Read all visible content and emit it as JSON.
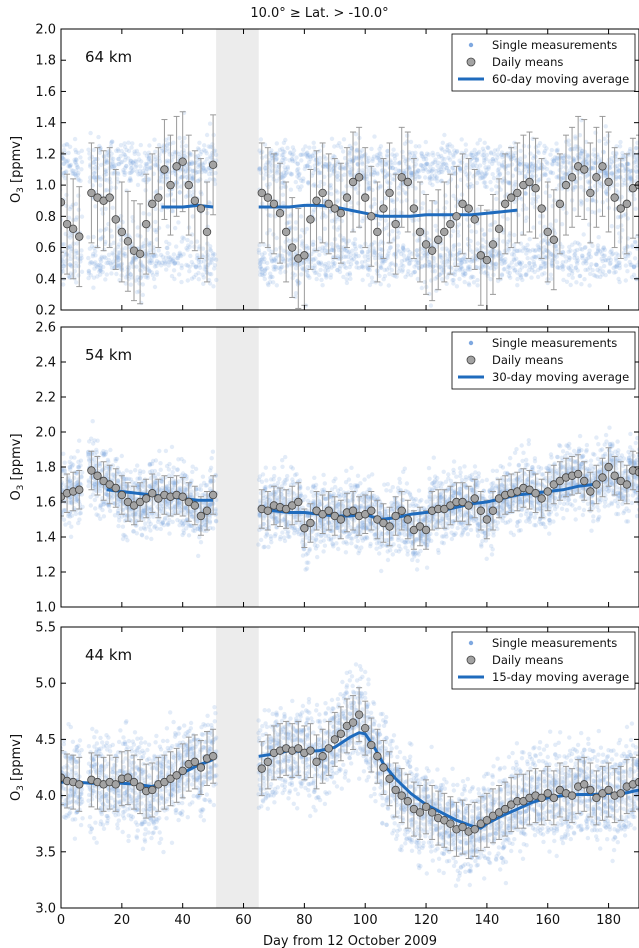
{
  "figure": {
    "title": "10.0° ≥ Lat. > -10.0°",
    "xlabel": "Day from 12 October 2009"
  },
  "colors": {
    "single": "#7fa8e0",
    "mean_fill": "#a3a3a3",
    "mean_edge": "#444444",
    "errorbar": "#9a9a9a",
    "moving_avg": "#1f6bbd",
    "data_gap": "#ececec"
  },
  "chart_data": [
    {
      "type": "scatter",
      "altitude_label": "64 km",
      "ylabel": "O3 [ppmv]",
      "xlim": [
        0,
        190
      ],
      "ylim": [
        0.2,
        2.0
      ],
      "xticks": [
        0,
        20,
        40,
        60,
        80,
        100,
        120,
        140,
        160,
        180
      ],
      "yticks": [
        "0.2",
        "0.4",
        "0.6",
        "0.8",
        "1.0",
        "1.2",
        "1.4",
        "1.6",
        "1.8",
        "2.0"
      ],
      "data_gap": [
        51,
        65
      ],
      "legend": {
        "position": "top-right",
        "entries": [
          "Single measurements",
          "Daily means",
          "60-day moving average"
        ]
      },
      "series": [
        {
          "name": "Daily means",
          "x": [
            0,
            2,
            4,
            6,
            10,
            12,
            14,
            16,
            18,
            20,
            22,
            24,
            26,
            28,
            30,
            32,
            34,
            36,
            38,
            40,
            42,
            44,
            46,
            48,
            50,
            66,
            68,
            70,
            72,
            74,
            76,
            78,
            80,
            82,
            84,
            86,
            88,
            90,
            92,
            94,
            96,
            98,
            100,
            102,
            104,
            106,
            108,
            110,
            112,
            114,
            116,
            118,
            120,
            122,
            124,
            126,
            128,
            130,
            132,
            134,
            136,
            138,
            140,
            142,
            144,
            146,
            148,
            150,
            152,
            154,
            156,
            158,
            160,
            162,
            164,
            166,
            168,
            170,
            172,
            174,
            176,
            178,
            180,
            182,
            184,
            186,
            188,
            190
          ],
          "y": [
            0.89,
            0.75,
            0.72,
            0.67,
            0.95,
            0.92,
            0.9,
            0.92,
            0.78,
            0.7,
            0.64,
            0.58,
            0.56,
            0.75,
            0.88,
            0.92,
            1.1,
            1.0,
            1.12,
            1.15,
            1.0,
            0.9,
            0.85,
            0.7,
            1.13,
            0.95,
            0.92,
            0.88,
            0.82,
            0.7,
            0.6,
            0.53,
            0.55,
            0.78,
            0.9,
            0.95,
            0.88,
            0.85,
            0.82,
            0.92,
            1.02,
            1.05,
            0.92,
            0.8,
            0.7,
            0.85,
            0.95,
            0.75,
            1.05,
            1.02,
            0.85,
            0.7,
            0.62,
            0.58,
            0.65,
            0.7,
            0.75,
            0.8,
            0.88,
            0.85,
            0.78,
            0.55,
            0.52,
            0.62,
            0.72,
            0.88,
            0.92,
            0.95,
            1.0,
            1.02,
            0.98,
            0.85,
            0.7,
            0.65,
            0.88,
            1.0,
            1.05,
            1.12,
            1.1,
            0.95,
            1.05,
            1.12,
            1.02,
            0.92,
            0.85,
            0.88,
            0.98,
            1.0
          ]
        },
        {
          "name": "60-day moving average",
          "x": [
            33,
            40,
            45,
            50,
            65,
            70,
            75,
            80,
            85,
            90,
            95,
            100,
            105,
            110,
            115,
            120,
            125,
            130,
            135,
            140,
            145,
            150
          ],
          "y": [
            0.86,
            0.86,
            0.87,
            0.86,
            0.86,
            0.86,
            0.86,
            0.87,
            0.87,
            0.86,
            0.84,
            0.82,
            0.8,
            0.8,
            0.8,
            0.81,
            0.81,
            0.81,
            0.81,
            0.82,
            0.83,
            0.84
          ]
        }
      ]
    },
    {
      "type": "scatter",
      "altitude_label": "54 km",
      "ylabel": "O3 [ppmv]",
      "xlim": [
        0,
        190
      ],
      "ylim": [
        1.0,
        2.6
      ],
      "xticks": [
        0,
        20,
        40,
        60,
        80,
        100,
        120,
        140,
        160,
        180
      ],
      "yticks": [
        "1.0",
        "1.2",
        "1.4",
        "1.6",
        "1.8",
        "2.0",
        "2.2",
        "2.4",
        "2.6"
      ],
      "data_gap": [
        51,
        65
      ],
      "legend": {
        "position": "top-right",
        "entries": [
          "Single measurements",
          "Daily means",
          "30-day moving average"
        ]
      },
      "series": [
        {
          "name": "Daily means",
          "x": [
            0,
            2,
            4,
            6,
            10,
            12,
            14,
            16,
            18,
            20,
            22,
            24,
            26,
            28,
            30,
            32,
            34,
            36,
            38,
            40,
            42,
            44,
            46,
            48,
            50,
            66,
            68,
            70,
            72,
            74,
            76,
            78,
            80,
            82,
            84,
            86,
            88,
            90,
            92,
            94,
            96,
            98,
            100,
            102,
            104,
            106,
            108,
            110,
            112,
            114,
            116,
            118,
            120,
            122,
            124,
            126,
            128,
            130,
            132,
            134,
            136,
            138,
            140,
            142,
            144,
            146,
            148,
            150,
            152,
            154,
            156,
            158,
            160,
            162,
            164,
            166,
            168,
            170,
            172,
            174,
            176,
            178,
            180,
            182,
            184,
            186,
            188,
            190
          ],
          "y": [
            1.63,
            1.65,
            1.66,
            1.67,
            1.78,
            1.75,
            1.72,
            1.7,
            1.68,
            1.64,
            1.6,
            1.58,
            1.6,
            1.62,
            1.65,
            1.62,
            1.64,
            1.63,
            1.64,
            1.63,
            1.6,
            1.58,
            1.52,
            1.55,
            1.64,
            1.56,
            1.55,
            1.58,
            1.57,
            1.56,
            1.58,
            1.6,
            1.45,
            1.48,
            1.55,
            1.53,
            1.55,
            1.52,
            1.5,
            1.54,
            1.55,
            1.52,
            1.53,
            1.55,
            1.5,
            1.48,
            1.46,
            1.52,
            1.55,
            1.5,
            1.44,
            1.46,
            1.44,
            1.55,
            1.56,
            1.56,
            1.58,
            1.6,
            1.6,
            1.58,
            1.62,
            1.55,
            1.5,
            1.55,
            1.62,
            1.64,
            1.65,
            1.66,
            1.68,
            1.67,
            1.65,
            1.62,
            1.66,
            1.7,
            1.72,
            1.74,
            1.75,
            1.76,
            1.72,
            1.66,
            1.7,
            1.74,
            1.8,
            1.75,
            1.72,
            1.7,
            1.78,
            1.77
          ]
        },
        {
          "name": "30-day moving average",
          "x": [
            15,
            20,
            25,
            30,
            35,
            40,
            45,
            50,
            65,
            70,
            75,
            80,
            85,
            90,
            95,
            100,
            105,
            110,
            115,
            120,
            125,
            130,
            135,
            140,
            145,
            150,
            155,
            160,
            165,
            170,
            175
          ],
          "y": [
            1.67,
            1.66,
            1.65,
            1.64,
            1.63,
            1.62,
            1.61,
            1.61,
            1.56,
            1.55,
            1.54,
            1.54,
            1.53,
            1.52,
            1.52,
            1.53,
            1.5,
            1.51,
            1.53,
            1.54,
            1.55,
            1.57,
            1.59,
            1.6,
            1.62,
            1.64,
            1.65,
            1.66,
            1.67,
            1.69,
            1.7
          ]
        }
      ]
    },
    {
      "type": "scatter",
      "altitude_label": "44 km",
      "ylabel": "O3 [ppmv]",
      "xlim": [
        0,
        190
      ],
      "ylim": [
        3.0,
        5.5
      ],
      "xticks": [
        0,
        20,
        40,
        60,
        80,
        100,
        120,
        140,
        160,
        180
      ],
      "yticks": [
        "3.0",
        "3.5",
        "4.0",
        "4.5",
        "5.0",
        "5.5"
      ],
      "data_gap": [
        51,
        65
      ],
      "legend": {
        "position": "top-right",
        "entries": [
          "Single measurements",
          "Daily means",
          "15-day moving average"
        ]
      },
      "series": [
        {
          "name": "Daily means",
          "x": [
            0,
            2,
            4,
            6,
            10,
            12,
            14,
            16,
            18,
            20,
            22,
            24,
            26,
            28,
            30,
            32,
            34,
            36,
            38,
            40,
            42,
            44,
            46,
            48,
            50,
            66,
            68,
            70,
            72,
            74,
            76,
            78,
            80,
            82,
            84,
            86,
            88,
            90,
            92,
            94,
            96,
            98,
            100,
            102,
            104,
            106,
            108,
            110,
            112,
            114,
            116,
            118,
            120,
            122,
            124,
            126,
            128,
            130,
            132,
            134,
            136,
            138,
            140,
            142,
            144,
            146,
            148,
            150,
            152,
            154,
            156,
            158,
            160,
            162,
            164,
            166,
            168,
            170,
            172,
            174,
            176,
            178,
            180,
            182,
            184,
            186,
            188,
            190
          ],
          "y": [
            4.16,
            4.13,
            4.12,
            4.1,
            4.14,
            4.12,
            4.1,
            4.12,
            4.1,
            4.15,
            4.16,
            4.12,
            4.08,
            4.04,
            4.05,
            4.1,
            4.12,
            4.15,
            4.18,
            4.22,
            4.28,
            4.3,
            4.25,
            4.33,
            4.35,
            4.24,
            4.3,
            4.38,
            4.4,
            4.42,
            4.4,
            4.42,
            4.38,
            4.4,
            4.3,
            4.35,
            4.42,
            4.5,
            4.55,
            4.62,
            4.65,
            4.72,
            4.6,
            4.45,
            4.35,
            4.25,
            4.15,
            4.05,
            4.0,
            3.95,
            3.88,
            3.85,
            3.9,
            3.85,
            3.8,
            3.78,
            3.75,
            3.7,
            3.72,
            3.68,
            3.7,
            3.75,
            3.78,
            3.82,
            3.85,
            3.88,
            3.92,
            3.95,
            3.95,
            3.98,
            4.0,
            3.98,
            4.02,
            3.98,
            4.05,
            4.02,
            4.0,
            4.08,
            4.1,
            4.05,
            3.98,
            4.02,
            4.05,
            4.0,
            4.02,
            4.08,
            4.1,
            4.12
          ]
        },
        {
          "name": "15-day moving average",
          "x": [
            0,
            5,
            10,
            15,
            20,
            25,
            30,
            35,
            40,
            45,
            50,
            65,
            70,
            75,
            80,
            85,
            90,
            95,
            98,
            100,
            103,
            106,
            110,
            115,
            120,
            125,
            130,
            135,
            138,
            140,
            145,
            150,
            155,
            160,
            165,
            170,
            175,
            180,
            185,
            190
          ],
          "y": [
            4.12,
            4.12,
            4.11,
            4.11,
            4.11,
            4.1,
            4.08,
            4.14,
            4.2,
            4.27,
            4.32,
            4.35,
            4.37,
            4.4,
            4.39,
            4.4,
            4.43,
            4.52,
            4.56,
            4.55,
            4.43,
            4.28,
            4.15,
            4.02,
            3.92,
            3.85,
            3.78,
            3.73,
            3.71,
            3.75,
            3.82,
            3.88,
            3.94,
            3.98,
            4.0,
            4.01,
            4.01,
            4.02,
            4.02,
            4.05
          ]
        }
      ]
    }
  ]
}
